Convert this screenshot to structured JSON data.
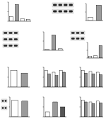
{
  "chart_data": [
    {
      "type": "bar",
      "categories": [
        null,
        null,
        null,
        null
      ],
      "values": [
        1,
        3.5,
        0.5,
        0.4
      ],
      "colors": [
        "#ffffff",
        "#9a9a9a",
        "#ffffff",
        "#ffffff"
      ],
      "ylim": [
        0,
        4
      ],
      "yticks": [
        0,
        2,
        4
      ],
      "grid": false,
      "tick_labels": false
    },
    {
      "type": "bar",
      "categories": [
        null,
        null
      ],
      "values": [
        1,
        4.5
      ],
      "colors": [
        "#ffffff",
        "#9a9a9a"
      ],
      "ylim": [
        0,
        5
      ],
      "yticks": [
        0,
        2.5,
        5
      ],
      "grid": false,
      "tick_labels": false
    },
    {
      "type": "bar",
      "categories": [
        null,
        null,
        null
      ],
      "values": [
        0.3,
        5,
        0.5
      ],
      "colors": [
        "#ffffff",
        "#9a9a9a",
        "#ffffff"
      ],
      "ylim": [
        0,
        6
      ],
      "yticks": [
        0,
        3,
        6
      ],
      "grid": false,
      "tick_labels": false
    },
    {
      "type": "bar",
      "categories": [
        null,
        null,
        null
      ],
      "values": [
        0.5,
        0.6,
        3.2
      ],
      "colors": [
        "#ffffff",
        "#ffffff",
        "#9a9a9a"
      ],
      "ylim": [
        0,
        4
      ],
      "yticks": [
        0,
        2,
        4
      ],
      "grid": false,
      "tick_labels": false
    },
    {
      "type": "bar",
      "categories": [
        null,
        null
      ],
      "values": [
        1,
        0.85
      ],
      "colors": [
        "#ffffff",
        "#9a9a9a"
      ],
      "ylim": [
        0,
        1.2
      ],
      "yticks": [
        0,
        0.6,
        1.2
      ],
      "grid": false,
      "tick_labels": false
    },
    {
      "type": "bar",
      "categories": [
        null,
        null,
        null
      ],
      "series": [
        {
          "color": "#ffffff",
          "values": [
            1,
            0.9,
            1
          ]
        },
        {
          "color": "#8a8a8a",
          "values": [
            0.8,
            0.7,
            0.9
          ]
        }
      ],
      "ylim": [
        0,
        1.2
      ],
      "yticks": [
        0,
        0.6,
        1.2
      ],
      "grid": false,
      "tick_labels": false
    },
    {
      "type": "bar",
      "categories": [
        null,
        null,
        null
      ],
      "series": [
        {
          "color": "#ffffff",
          "values": [
            1,
            0.95,
            0.9
          ]
        },
        {
          "color": "#8a8a8a",
          "values": [
            0.85,
            0.8,
            0.75
          ]
        }
      ],
      "ylim": [
        0,
        1.2
      ],
      "yticks": [
        0,
        0.6,
        1.2
      ],
      "grid": false,
      "tick_labels": false
    },
    {
      "type": "bar",
      "categories": [
        null,
        null
      ],
      "values": [
        1,
        0.95
      ],
      "colors": [
        "#ffffff",
        "#9a9a9a"
      ],
      "ylim": [
        0,
        1.2
      ],
      "yticks": [
        0,
        0.6,
        1.2
      ],
      "grid": false,
      "tick_labels": false
    },
    {
      "type": "bar",
      "categories": [
        null,
        null,
        null
      ],
      "values": [
        0.3,
        0.9,
        0.6
      ],
      "colors": [
        "#ffffff",
        "#9a9a9a",
        "#555555"
      ],
      "ylim": [
        0,
        1.2
      ],
      "yticks": [
        0,
        0.6,
        1.2
      ],
      "grid": false,
      "tick_labels": false
    },
    {
      "type": "bar",
      "categories": [
        null,
        null,
        null
      ],
      "series": [
        {
          "color": "#ffffff",
          "values": [
            1,
            0.9,
            0.95
          ]
        },
        {
          "color": "#8a8a8a",
          "values": [
            0.9,
            0.8,
            0.85
          ]
        }
      ],
      "ylim": [
        0,
        1.2
      ],
      "yticks": [
        0,
        0.6,
        1.2
      ],
      "grid": false,
      "tick_labels": false
    }
  ]
}
